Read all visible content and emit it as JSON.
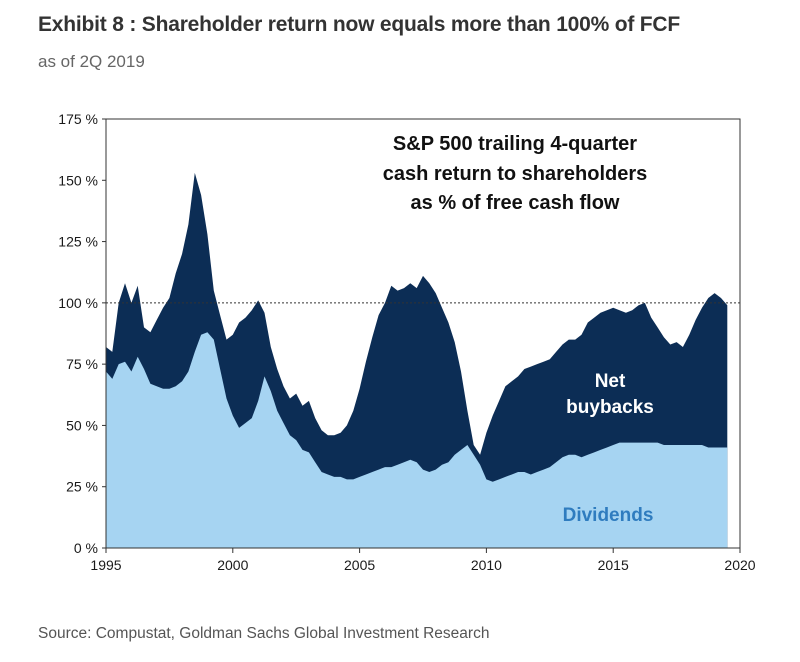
{
  "header": {
    "title": "Exhibit 8 : Shareholder return now equals more than 100% of FCF",
    "subtitle": "as of 2Q 2019"
  },
  "footer": {
    "source": "Source: Compustat, Goldman Sachs Global Investment Research"
  },
  "colors": {
    "dividends": "#a6d4f2",
    "net_buybacks": "#0c2d55",
    "reference_line": "#333333"
  },
  "chart_data": {
    "type": "area",
    "stacked": true,
    "title_annotation": [
      "S&P 500 trailing 4-quarter",
      "cash return to shareholders",
      "as % of free cash flow"
    ],
    "xlim": [
      1995,
      2020
    ],
    "ylim": [
      0,
      175
    ],
    "x_ticks": [
      1995,
      2000,
      2005,
      2010,
      2015,
      2020
    ],
    "y_ticks": [
      0,
      25,
      50,
      75,
      100,
      125,
      150,
      175
    ],
    "y_tick_labels": [
      "0 %",
      "25 %",
      "50 %",
      "75 %",
      "100 %",
      "125 %",
      "150 %",
      "175 %"
    ],
    "reference_line": 100,
    "series": [
      {
        "name": "Dividends",
        "label": "Dividends",
        "points": [
          [
            1995,
            72
          ],
          [
            1995.25,
            69
          ],
          [
            1995.5,
            75
          ],
          [
            1995.75,
            76
          ],
          [
            1996,
            72
          ],
          [
            1996.25,
            78
          ],
          [
            1996.5,
            73
          ],
          [
            1996.75,
            67
          ],
          [
            1997,
            66
          ],
          [
            1997.25,
            65
          ],
          [
            1997.5,
            65
          ],
          [
            1997.75,
            66
          ],
          [
            1998,
            68
          ],
          [
            1998.25,
            72
          ],
          [
            1998.5,
            80
          ],
          [
            1998.75,
            87
          ],
          [
            1999,
            88
          ],
          [
            1999.25,
            85
          ],
          [
            1999.5,
            73
          ],
          [
            1999.75,
            61
          ],
          [
            2000,
            54
          ],
          [
            2000.25,
            49
          ],
          [
            2000.5,
            51
          ],
          [
            2000.75,
            53
          ],
          [
            2001,
            60
          ],
          [
            2001.25,
            70
          ],
          [
            2001.5,
            64
          ],
          [
            2001.75,
            56
          ],
          [
            2002,
            51
          ],
          [
            2002.25,
            46
          ],
          [
            2002.5,
            44
          ],
          [
            2002.75,
            40
          ],
          [
            2003,
            39
          ],
          [
            2003.25,
            35
          ],
          [
            2003.5,
            31
          ],
          [
            2003.75,
            30
          ],
          [
            2004,
            29
          ],
          [
            2004.25,
            29
          ],
          [
            2004.5,
            28
          ],
          [
            2004.75,
            28
          ],
          [
            2005,
            29
          ],
          [
            2005.25,
            30
          ],
          [
            2005.5,
            31
          ],
          [
            2005.75,
            32
          ],
          [
            2006,
            33
          ],
          [
            2006.25,
            33
          ],
          [
            2006.5,
            34
          ],
          [
            2006.75,
            35
          ],
          [
            2007,
            36
          ],
          [
            2007.25,
            35
          ],
          [
            2007.5,
            32
          ],
          [
            2007.75,
            31
          ],
          [
            2008,
            32
          ],
          [
            2008.25,
            34
          ],
          [
            2008.5,
            35
          ],
          [
            2008.75,
            38
          ],
          [
            2009,
            40
          ],
          [
            2009.25,
            42
          ],
          [
            2009.5,
            38
          ],
          [
            2009.75,
            34
          ],
          [
            2010,
            28
          ],
          [
            2010.25,
            27
          ],
          [
            2010.5,
            28
          ],
          [
            2010.75,
            29
          ],
          [
            2011,
            30
          ],
          [
            2011.25,
            31
          ],
          [
            2011.5,
            31
          ],
          [
            2011.75,
            30
          ],
          [
            2012,
            31
          ],
          [
            2012.25,
            32
          ],
          [
            2012.5,
            33
          ],
          [
            2012.75,
            35
          ],
          [
            2013,
            37
          ],
          [
            2013.25,
            38
          ],
          [
            2013.5,
            38
          ],
          [
            2013.75,
            37
          ],
          [
            2014,
            38
          ],
          [
            2014.25,
            39
          ],
          [
            2014.5,
            40
          ],
          [
            2014.75,
            41
          ],
          [
            2015,
            42
          ],
          [
            2015.25,
            43
          ],
          [
            2015.5,
            43
          ],
          [
            2015.75,
            43
          ],
          [
            2016,
            43
          ],
          [
            2016.25,
            43
          ],
          [
            2016.5,
            43
          ],
          [
            2016.75,
            43
          ],
          [
            2017,
            42
          ],
          [
            2017.25,
            42
          ],
          [
            2017.5,
            42
          ],
          [
            2017.75,
            42
          ],
          [
            2018,
            42
          ],
          [
            2018.25,
            42
          ],
          [
            2018.5,
            42
          ],
          [
            2018.75,
            41
          ],
          [
            2019,
            41
          ],
          [
            2019.25,
            41
          ],
          [
            2019.5,
            41
          ]
        ]
      },
      {
        "name": "Net buybacks (total cash return)",
        "label": "Net buybacks",
        "points": [
          [
            1995,
            82
          ],
          [
            1995.25,
            80
          ],
          [
            1995.5,
            100
          ],
          [
            1995.75,
            108
          ],
          [
            1996,
            100
          ],
          [
            1996.25,
            107
          ],
          [
            1996.5,
            90
          ],
          [
            1996.75,
            88
          ],
          [
            1997,
            93
          ],
          [
            1997.25,
            98
          ],
          [
            1997.5,
            102
          ],
          [
            1997.75,
            112
          ],
          [
            1998,
            120
          ],
          [
            1998.25,
            132
          ],
          [
            1998.5,
            153
          ],
          [
            1998.75,
            144
          ],
          [
            1999,
            128
          ],
          [
            1999.25,
            105
          ],
          [
            1999.5,
            95
          ],
          [
            1999.75,
            85
          ],
          [
            2000,
            87
          ],
          [
            2000.25,
            92
          ],
          [
            2000.5,
            94
          ],
          [
            2000.75,
            97
          ],
          [
            2001,
            101
          ],
          [
            2001.25,
            96
          ],
          [
            2001.5,
            82
          ],
          [
            2001.75,
            73
          ],
          [
            2002,
            66
          ],
          [
            2002.25,
            61
          ],
          [
            2002.5,
            63
          ],
          [
            2002.75,
            58
          ],
          [
            2003,
            60
          ],
          [
            2003.25,
            53
          ],
          [
            2003.5,
            48
          ],
          [
            2003.75,
            46
          ],
          [
            2004,
            46
          ],
          [
            2004.25,
            47
          ],
          [
            2004.5,
            50
          ],
          [
            2004.75,
            56
          ],
          [
            2005,
            65
          ],
          [
            2005.25,
            76
          ],
          [
            2005.5,
            86
          ],
          [
            2005.75,
            95
          ],
          [
            2006,
            100
          ],
          [
            2006.25,
            107
          ],
          [
            2006.5,
            105
          ],
          [
            2006.75,
            106
          ],
          [
            2007,
            108
          ],
          [
            2007.25,
            106
          ],
          [
            2007.5,
            111
          ],
          [
            2007.75,
            108
          ],
          [
            2008,
            104
          ],
          [
            2008.25,
            98
          ],
          [
            2008.5,
            92
          ],
          [
            2008.75,
            84
          ],
          [
            2009,
            72
          ],
          [
            2009.25,
            56
          ],
          [
            2009.5,
            42
          ],
          [
            2009.75,
            38
          ],
          [
            2010,
            47
          ],
          [
            2010.25,
            54
          ],
          [
            2010.5,
            60
          ],
          [
            2010.75,
            66
          ],
          [
            2011,
            68
          ],
          [
            2011.25,
            70
          ],
          [
            2011.5,
            73
          ],
          [
            2011.75,
            74
          ],
          [
            2012,
            75
          ],
          [
            2012.25,
            76
          ],
          [
            2012.5,
            77
          ],
          [
            2012.75,
            80
          ],
          [
            2013,
            83
          ],
          [
            2013.25,
            85
          ],
          [
            2013.5,
            85
          ],
          [
            2013.75,
            87
          ],
          [
            2014,
            92
          ],
          [
            2014.25,
            94
          ],
          [
            2014.5,
            96
          ],
          [
            2014.75,
            97
          ],
          [
            2015,
            98
          ],
          [
            2015.25,
            97
          ],
          [
            2015.5,
            96
          ],
          [
            2015.75,
            97
          ],
          [
            2016,
            99
          ],
          [
            2016.25,
            100
          ],
          [
            2016.5,
            94
          ],
          [
            2016.75,
            90
          ],
          [
            2017,
            86
          ],
          [
            2017.25,
            83
          ],
          [
            2017.5,
            84
          ],
          [
            2017.75,
            82
          ],
          [
            2018,
            87
          ],
          [
            2018.25,
            93
          ],
          [
            2018.5,
            98
          ],
          [
            2018.75,
            102
          ],
          [
            2019,
            104
          ],
          [
            2019.25,
            102
          ],
          [
            2019.5,
            99
          ]
        ]
      }
    ]
  }
}
